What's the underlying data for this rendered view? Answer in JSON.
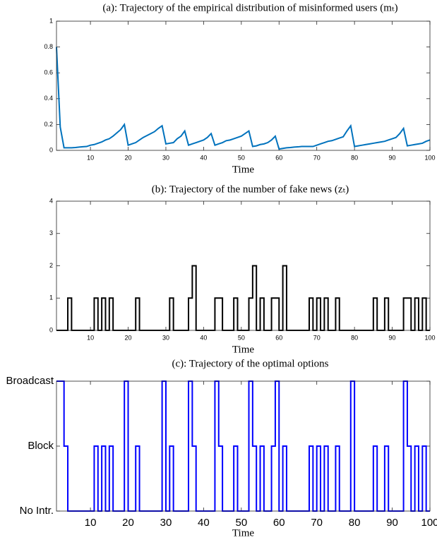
{
  "chart_data": [
    {
      "type": "line",
      "title": "(a): Trajectory of the empirical distribution of misinformed users (mₜ)",
      "x_label": "Time",
      "color": "#0072bd",
      "x": [
        1,
        2,
        3,
        4,
        5,
        6,
        7,
        8,
        9,
        10,
        11,
        12,
        13,
        14,
        15,
        16,
        17,
        18,
        19,
        20,
        21,
        22,
        23,
        24,
        25,
        26,
        27,
        28,
        29,
        30,
        31,
        32,
        33,
        34,
        35,
        36,
        37,
        38,
        39,
        40,
        41,
        42,
        43,
        44,
        45,
        46,
        47,
        48,
        49,
        50,
        51,
        52,
        53,
        54,
        55,
        56,
        57,
        58,
        59,
        60,
        61,
        62,
        63,
        64,
        65,
        66,
        67,
        68,
        69,
        70,
        71,
        72,
        73,
        74,
        75,
        76,
        77,
        78,
        79,
        80,
        81,
        82,
        83,
        84,
        85,
        86,
        87,
        88,
        89,
        90,
        91,
        92,
        93,
        94,
        95,
        96,
        97,
        98,
        99,
        100
      ],
      "values": [
        0.8,
        0.18,
        0.02,
        0.02,
        0.02,
        0.022,
        0.025,
        0.028,
        0.03,
        0.04,
        0.045,
        0.055,
        0.065,
        0.08,
        0.09,
        0.11,
        0.135,
        0.16,
        0.2,
        0.04,
        0.05,
        0.06,
        0.08,
        0.1,
        0.115,
        0.13,
        0.145,
        0.17,
        0.19,
        0.05,
        0.055,
        0.06,
        0.09,
        0.11,
        0.15,
        0.04,
        0.05,
        0.06,
        0.07,
        0.08,
        0.1,
        0.13,
        0.04,
        0.05,
        0.06,
        0.075,
        0.08,
        0.09,
        0.1,
        0.11,
        0.13,
        0.15,
        0.03,
        0.035,
        0.045,
        0.05,
        0.06,
        0.08,
        0.11,
        0.01,
        0.015,
        0.02,
        0.022,
        0.025,
        0.027,
        0.03,
        0.03,
        0.03,
        0.03,
        0.04,
        0.05,
        0.06,
        0.07,
        0.075,
        0.085,
        0.095,
        0.105,
        0.15,
        0.19,
        0.03,
        0.035,
        0.04,
        0.045,
        0.05,
        0.055,
        0.06,
        0.065,
        0.07,
        0.08,
        0.09,
        0.1,
        0.13,
        0.17,
        0.035,
        0.04,
        0.045,
        0.05,
        0.055,
        0.07,
        0.08
      ],
      "xlim": [
        1,
        100
      ],
      "xticks": [
        10,
        20,
        30,
        40,
        50,
        60,
        70,
        80,
        90,
        100
      ],
      "ylim": [
        0,
        1
      ],
      "yticks": [
        0,
        0.2,
        0.4,
        0.6,
        0.8,
        1
      ]
    },
    {
      "type": "step",
      "title": "(b): Trajectory of the number of fake news (zₜ)",
      "x_label": "Time",
      "color": "#000000",
      "x": [
        1,
        2,
        3,
        4,
        5,
        6,
        7,
        8,
        9,
        10,
        11,
        12,
        13,
        14,
        15,
        16,
        17,
        18,
        19,
        20,
        21,
        22,
        23,
        24,
        25,
        26,
        27,
        28,
        29,
        30,
        31,
        32,
        33,
        34,
        35,
        36,
        37,
        38,
        39,
        40,
        41,
        42,
        43,
        44,
        45,
        46,
        47,
        48,
        49,
        50,
        51,
        52,
        53,
        54,
        55,
        56,
        57,
        58,
        59,
        60,
        61,
        62,
        63,
        64,
        65,
        66,
        67,
        68,
        69,
        70,
        71,
        72,
        73,
        74,
        75,
        76,
        77,
        78,
        79,
        80,
        81,
        82,
        83,
        84,
        85,
        86,
        87,
        88,
        89,
        90,
        91,
        92,
        93,
        94,
        95,
        96,
        97,
        98,
        99,
        100
      ],
      "values": [
        0,
        0,
        0,
        1,
        0,
        0,
        0,
        0,
        0,
        0,
        1,
        0,
        1,
        0,
        1,
        0,
        0,
        0,
        0,
        0,
        0,
        1,
        0,
        0,
        0,
        0,
        0,
        0,
        0,
        0,
        1,
        0,
        0,
        0,
        0,
        1,
        2,
        0,
        0,
        0,
        0,
        0,
        1,
        1,
        0,
        0,
        0,
        1,
        0,
        0,
        0,
        1,
        2,
        0,
        1,
        0,
        0,
        1,
        1,
        0,
        2,
        0,
        0,
        0,
        0,
        0,
        0,
        1,
        0,
        1,
        0,
        1,
        0,
        0,
        1,
        0,
        0,
        0,
        0,
        0,
        0,
        0,
        0,
        0,
        1,
        0,
        0,
        1,
        0,
        0,
        0,
        0,
        1,
        1,
        0,
        1,
        0,
        1,
        0,
        0
      ],
      "xlim": [
        1,
        100
      ],
      "xticks": [
        10,
        20,
        30,
        40,
        50,
        60,
        70,
        80,
        90,
        100
      ],
      "ylim": [
        0,
        4
      ],
      "yticks": [
        0,
        1,
        2,
        3,
        4
      ]
    },
    {
      "type": "step",
      "title": "(c): Trajectory of the optimal options",
      "x_label": "Time",
      "color": "#0000ff",
      "x": [
        1,
        2,
        3,
        4,
        5,
        6,
        7,
        8,
        9,
        10,
        11,
        12,
        13,
        14,
        15,
        16,
        17,
        18,
        19,
        20,
        21,
        22,
        23,
        24,
        25,
        26,
        27,
        28,
        29,
        30,
        31,
        32,
        33,
        34,
        35,
        36,
        37,
        38,
        39,
        40,
        41,
        42,
        43,
        44,
        45,
        46,
        47,
        48,
        49,
        50,
        51,
        52,
        53,
        54,
        55,
        56,
        57,
        58,
        59,
        60,
        61,
        62,
        63,
        64,
        65,
        66,
        67,
        68,
        69,
        70,
        71,
        72,
        73,
        74,
        75,
        76,
        77,
        78,
        79,
        80,
        81,
        82,
        83,
        84,
        85,
        86,
        87,
        88,
        89,
        90,
        91,
        92,
        93,
        94,
        95,
        96,
        97,
        98,
        99,
        100
      ],
      "values": [
        2,
        2,
        1,
        0,
        0,
        0,
        0,
        0,
        0,
        0,
        1,
        0,
        1,
        0,
        1,
        0,
        0,
        0,
        2,
        0,
        0,
        1,
        0,
        0,
        0,
        0,
        0,
        0,
        2,
        0,
        1,
        0,
        0,
        0,
        0,
        2,
        1,
        0,
        0,
        0,
        0,
        0,
        2,
        1,
        0,
        0,
        0,
        1,
        0,
        0,
        0,
        2,
        1,
        0,
        1,
        0,
        0,
        1,
        2,
        0,
        1,
        0,
        0,
        0,
        0,
        0,
        0,
        1,
        0,
        1,
        0,
        1,
        0,
        0,
        1,
        0,
        0,
        0,
        2,
        0,
        0,
        0,
        0,
        0,
        1,
        0,
        0,
        1,
        0,
        0,
        0,
        0,
        2,
        1,
        0,
        1,
        0,
        1,
        0,
        0
      ],
      "xlim": [
        1,
        100
      ],
      "xticks": [
        10,
        20,
        30,
        40,
        50,
        60,
        70,
        80,
        90,
        100
      ],
      "ylim": [
        0,
        2
      ],
      "yticks": [
        {
          "value": 0,
          "label": "No Intr."
        },
        {
          "value": 1,
          "label": "Block"
        },
        {
          "value": 2,
          "label": "Broadcast"
        }
      ]
    }
  ]
}
